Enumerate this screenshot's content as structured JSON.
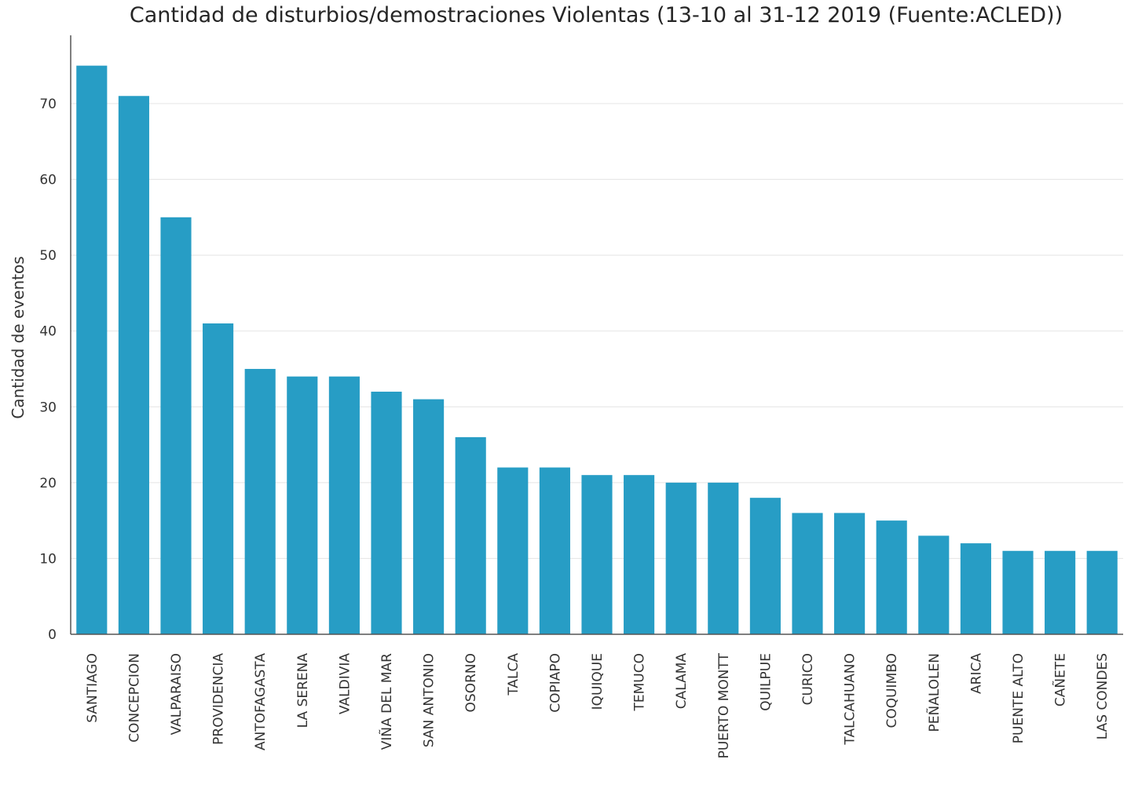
{
  "chart_data": {
    "type": "bar",
    "title": "Cantidad de disturbios/demostraciones Violentas (13-10 al 31-12 2019 (Fuente:ACLED))",
    "xlabel": "",
    "ylabel": "Cantidad de eventos",
    "ylim": [
      0,
      79
    ],
    "yticks": [
      0,
      10,
      20,
      30,
      40,
      50,
      60,
      70
    ],
    "grid": true,
    "bar_color": "#279dc5",
    "categories": [
      "SANTIAGO",
      "CONCEPCION",
      "VALPARAISO",
      "PROVIDENCIA",
      "ANTOFAGASTA",
      "LA SERENA",
      "VALDIVIA",
      "VIÑA DEL MAR",
      "SAN ANTONIO",
      "OSORNO",
      "TALCA",
      "COPIAPO",
      "IQUIQUE",
      "TEMUCO",
      "CALAMA",
      "PUERTO MONTT",
      "QUILPUE",
      "CURICO",
      "TALCAHUANO",
      "COQUIMBO",
      "PEÑALOLEN",
      "ARICA",
      "PUENTE ALTO",
      "CAÑETE",
      "LAS CONDES"
    ],
    "values": [
      75,
      71,
      55,
      41,
      35,
      34,
      34,
      32,
      31,
      26,
      22,
      22,
      21,
      21,
      20,
      20,
      18,
      16,
      16,
      15,
      13,
      12,
      11,
      11,
      11
    ]
  }
}
